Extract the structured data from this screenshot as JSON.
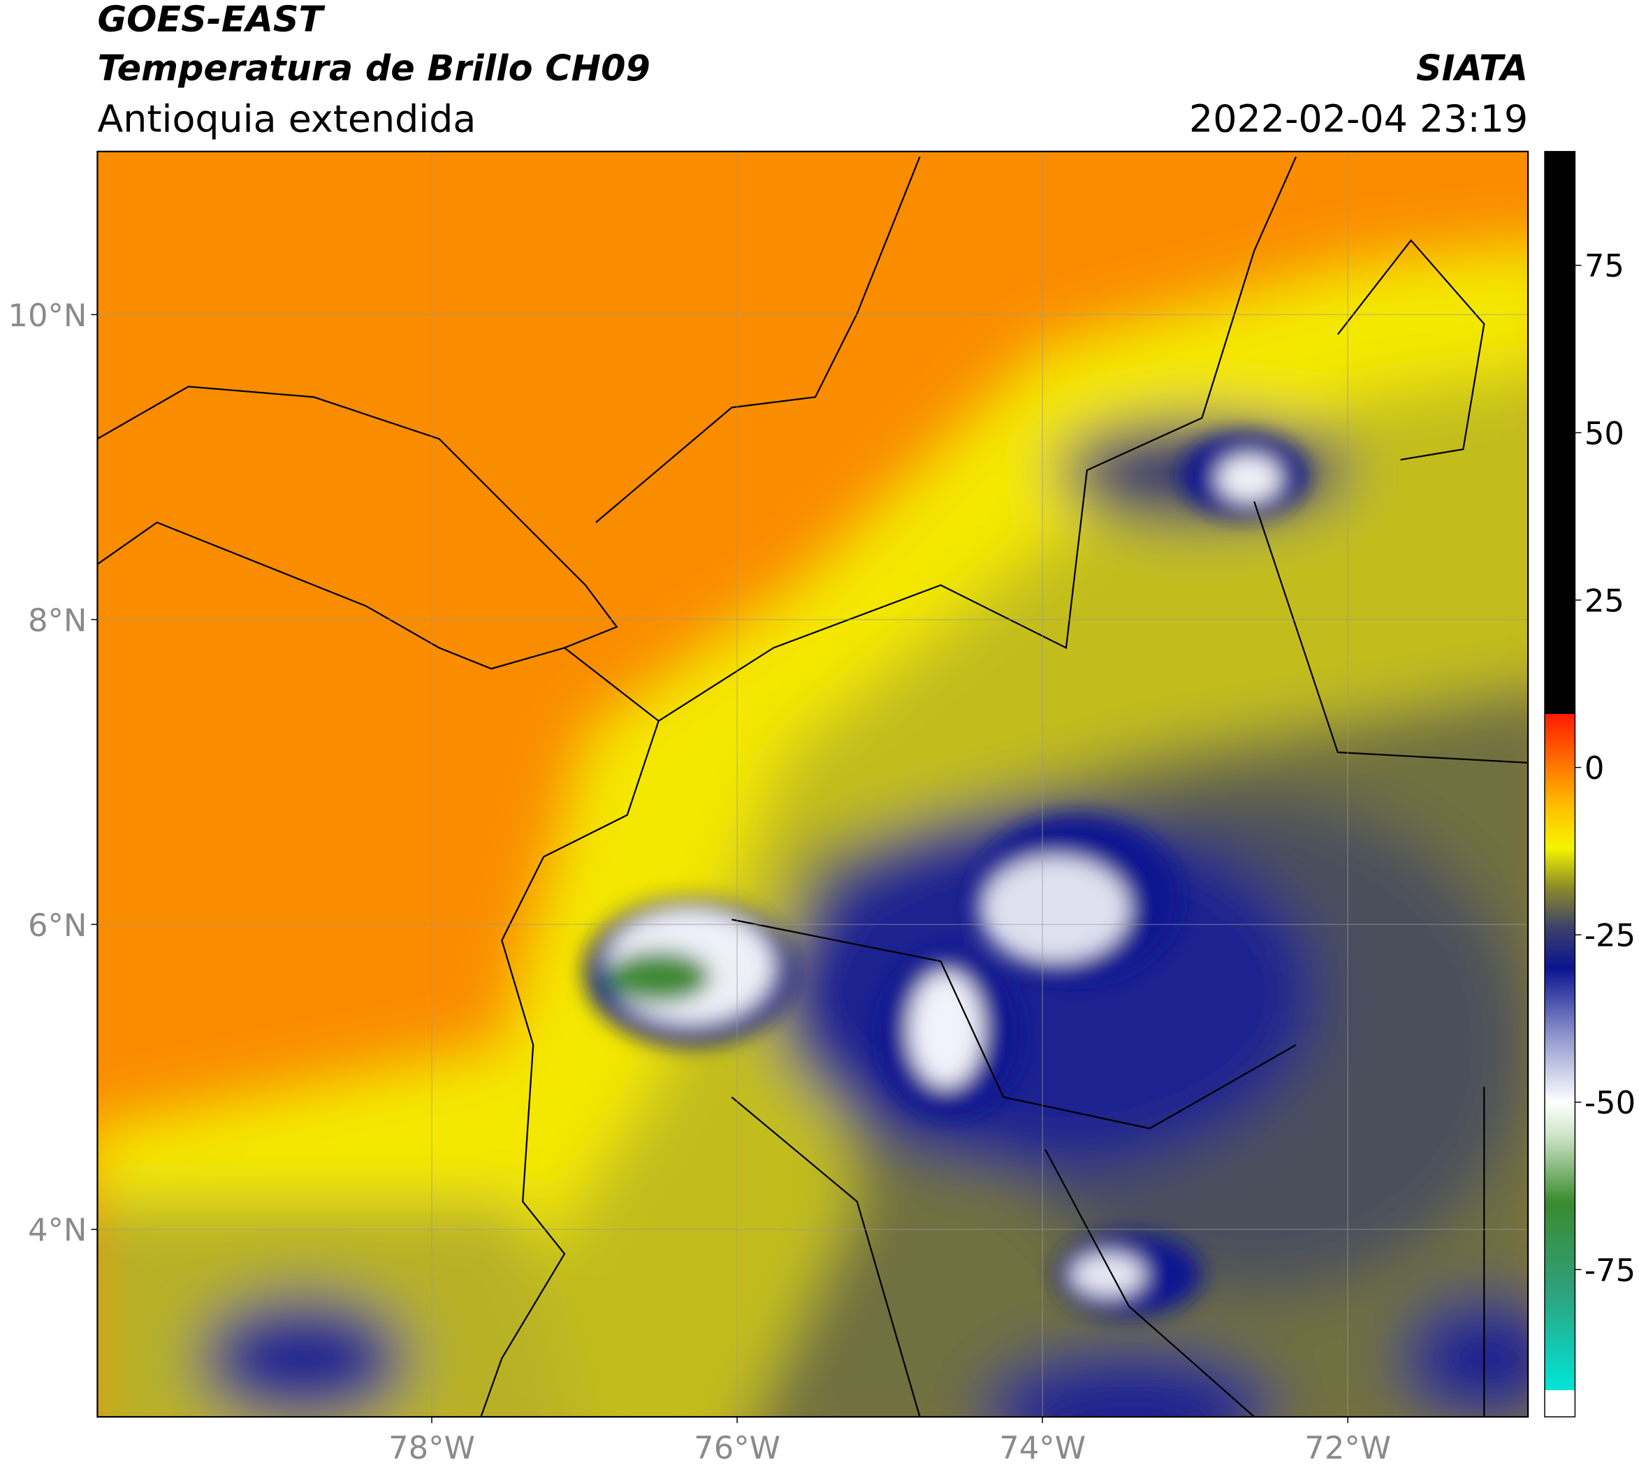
{
  "header": {
    "title": "GOES-EAST",
    "subtitle": "Temperatura de Brillo CH09",
    "region": "Antioquia extendida",
    "source": "SIATA",
    "datetime": "2022-02-04 23:19"
  },
  "map": {
    "lon_range": [
      -80.19,
      -70.82
    ],
    "lat_range": [
      2.77,
      11.07
    ],
    "lon_ticks": [
      {
        "value": -78,
        "label": "78°W"
      },
      {
        "value": -76,
        "label": "76°W"
      },
      {
        "value": -74,
        "label": "74°W"
      },
      {
        "value": -72,
        "label": "72°W"
      }
    ],
    "lat_ticks": [
      {
        "value": 10,
        "label": "10°N"
      },
      {
        "value": 8,
        "label": "8°N"
      },
      {
        "value": 6,
        "label": "6°N"
      },
      {
        "value": 4,
        "label": "4°N"
      }
    ]
  },
  "colorbar": {
    "range": [
      -97,
      92
    ],
    "ticks": [
      75,
      50,
      25,
      0,
      -25,
      -50,
      -75
    ],
    "stops": [
      {
        "value": -97,
        "color": "#ffffff"
      },
      {
        "value": -93,
        "color": "#ffffff"
      },
      {
        "value": -93,
        "color": "#00e5d8"
      },
      {
        "value": -78,
        "color": "#2fa07a"
      },
      {
        "value": -65,
        "color": "#3a8a2e"
      },
      {
        "value": -55,
        "color": "#cfe5c8"
      },
      {
        "value": -50,
        "color": "#ffffff"
      },
      {
        "value": -40,
        "color": "#8d95cc"
      },
      {
        "value": -30,
        "color": "#0a1490"
      },
      {
        "value": -24,
        "color": "#3c3f6a"
      },
      {
        "value": -18,
        "color": "#8a8a2a"
      },
      {
        "value": -12,
        "color": "#f6f400"
      },
      {
        "value": -6,
        "color": "#ffc000"
      },
      {
        "value": 0,
        "color": "#ff7a00"
      },
      {
        "value": 8,
        "color": "#ff1a00"
      },
      {
        "value": 8,
        "color": "#000000"
      },
      {
        "value": 92,
        "color": "#000000"
      }
    ]
  }
}
